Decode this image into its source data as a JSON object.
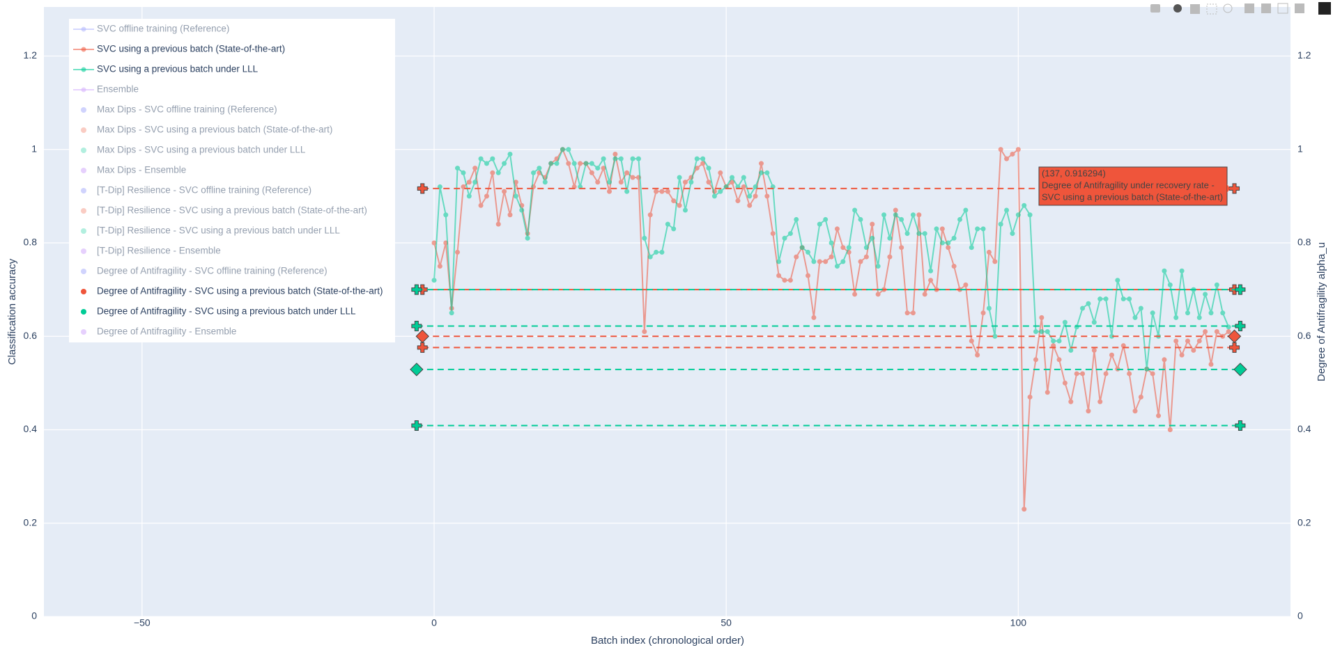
{
  "chart_data": {
    "type": "line",
    "x_label": "Batch index (chronological order)",
    "y_label": "Classification accuracy",
    "y2_label": "Degree of Antifragility alpha_u",
    "xlim": [
      -66.8,
      146.6
    ],
    "ylim": [
      0,
      1.305
    ],
    "y2lim": [
      0,
      1.305
    ],
    "xticks": [
      {
        "value": -50,
        "label": "−50"
      },
      0,
      50,
      100
    ],
    "yticks": [
      0,
      0.2,
      0.4,
      0.6,
      0.8,
      1,
      1.2
    ],
    "y2ticks": [
      0,
      0.2,
      0.4,
      0.6,
      0.8,
      1,
      1.2
    ],
    "grid": true,
    "x": [
      0,
      1,
      2,
      3,
      4,
      5,
      6,
      7,
      8,
      9,
      10,
      11,
      12,
      13,
      14,
      15,
      16,
      17,
      18,
      19,
      20,
      21,
      22,
      23,
      24,
      25,
      26,
      27,
      28,
      29,
      30,
      31,
      32,
      33,
      34,
      35,
      36,
      37,
      38,
      39,
      40,
      41,
      42,
      43,
      44,
      45,
      46,
      47,
      48,
      49,
      50,
      51,
      52,
      53,
      54,
      55,
      56,
      57,
      58,
      59,
      60,
      61,
      62,
      63,
      64,
      65,
      66,
      67,
      68,
      69,
      70,
      71,
      72,
      73,
      74,
      75,
      76,
      77,
      78,
      79,
      80,
      81,
      82,
      83,
      84,
      85,
      86,
      87,
      88,
      89,
      90,
      91,
      92,
      93,
      94,
      95,
      96,
      97,
      98,
      99,
      100,
      101,
      102,
      103,
      104,
      105,
      106,
      107,
      108,
      109,
      110,
      111,
      112,
      113,
      114,
      115,
      116,
      117,
      118,
      119,
      120,
      121,
      122,
      123,
      124,
      125,
      126,
      127,
      128,
      129,
      130,
      131,
      132,
      133,
      134,
      135,
      136
    ],
    "series": [
      {
        "name": "SVC offline training (Reference)",
        "color": "#636efa",
        "mode": "lines",
        "visible": false
      },
      {
        "name": "SVC using a previous batch (State-of-the-art)",
        "color": "#EF553B",
        "mode": "lines",
        "visible": true,
        "values": [
          0.8,
          0.75,
          0.8,
          0.66,
          0.78,
          0.92,
          0.93,
          0.96,
          0.88,
          0.9,
          0.95,
          0.84,
          0.91,
          0.86,
          0.93,
          0.88,
          0.82,
          0.92,
          0.95,
          0.94,
          0.97,
          0.98,
          1.0,
          0.97,
          0.92,
          0.97,
          0.97,
          0.95,
          0.93,
          0.96,
          0.91,
          0.99,
          0.93,
          0.95,
          0.94,
          0.94,
          0.61,
          0.86,
          0.91,
          0.91,
          0.91,
          0.89,
          0.88,
          0.93,
          0.94,
          0.96,
          0.97,
          0.93,
          0.91,
          0.95,
          0.92,
          0.93,
          0.89,
          0.92,
          0.88,
          0.9,
          0.97,
          0.9,
          0.82,
          0.73,
          0.72,
          0.72,
          0.77,
          0.79,
          0.73,
          0.64,
          0.76,
          0.76,
          0.77,
          0.83,
          0.79,
          0.78,
          0.69,
          0.76,
          0.77,
          0.84,
          0.69,
          0.7,
          0.77,
          0.87,
          0.79,
          0.65,
          0.65,
          0.86,
          0.69,
          0.72,
          0.7,
          0.83,
          0.79,
          0.75,
          0.7,
          0.71,
          0.59,
          0.56,
          0.65,
          0.78,
          0.76,
          1.0,
          0.98,
          0.99,
          1.0,
          0.23,
          0.47,
          0.55,
          0.64,
          0.48,
          0.58,
          0.55,
          0.5,
          0.46,
          0.52,
          0.52,
          0.44,
          0.57,
          0.46,
          0.52,
          0.56,
          0.53,
          0.58,
          0.52,
          0.44,
          0.47,
          0.53,
          0.52,
          0.43,
          0.55,
          0.4,
          0.59,
          0.56,
          0.59,
          0.57,
          0.59,
          0.61,
          0.54,
          0.61,
          0.6,
          0.61
        ]
      },
      {
        "name": "SVC using a previous batch under LLL",
        "color": "#00cc96",
        "mode": "lines",
        "visible": true,
        "values": [
          0.72,
          0.92,
          0.86,
          0.65,
          0.96,
          0.95,
          0.9,
          0.93,
          0.98,
          0.97,
          0.98,
          0.95,
          0.97,
          0.99,
          0.9,
          0.87,
          0.81,
          0.95,
          0.96,
          0.93,
          0.97,
          0.97,
          1.0,
          1.0,
          0.97,
          0.92,
          0.97,
          0.97,
          0.96,
          0.98,
          0.93,
          0.98,
          0.98,
          0.91,
          0.98,
          0.98,
          0.81,
          0.77,
          0.78,
          0.78,
          0.84,
          0.83,
          0.94,
          0.87,
          0.93,
          0.98,
          0.98,
          0.96,
          0.9,
          0.91,
          0.92,
          0.94,
          0.92,
          0.94,
          0.9,
          0.92,
          0.95,
          0.95,
          0.92,
          0.76,
          0.81,
          0.82,
          0.85,
          0.79,
          0.78,
          0.76,
          0.84,
          0.85,
          0.8,
          0.75,
          0.76,
          0.79,
          0.87,
          0.85,
          0.79,
          0.81,
          0.75,
          0.86,
          0.81,
          0.86,
          0.85,
          0.82,
          0.86,
          0.82,
          0.82,
          0.74,
          0.83,
          0.8,
          0.8,
          0.81,
          0.85,
          0.87,
          0.79,
          0.83,
          0.83,
          0.66,
          0.6,
          0.84,
          0.87,
          0.82,
          0.86,
          0.88,
          0.86,
          0.61,
          0.61,
          0.61,
          0.59,
          0.59,
          0.63,
          0.57,
          0.62,
          0.66,
          0.67,
          0.63,
          0.68,
          0.68,
          0.6,
          0.72,
          0.68,
          0.68,
          0.64,
          0.66,
          0.53,
          0.65,
          0.6,
          0.74,
          0.71,
          0.64,
          0.74,
          0.65,
          0.7,
          0.64,
          0.69,
          0.65,
          0.71,
          0.65,
          0.62
        ]
      },
      {
        "name": "Ensemble",
        "color": "#ab63fa",
        "mode": "lines",
        "visible": false
      },
      {
        "name": "Max Dips - SVC offline training (Reference)",
        "color": "#636efa",
        "mode": "markers",
        "visible": false
      },
      {
        "name": "Max Dips - SVC using a previous batch (State-of-the-art)",
        "color": "#EF553B",
        "mode": "markers",
        "visible": false
      },
      {
        "name": "Max Dips - SVC using a previous batch under LLL",
        "color": "#00cc96",
        "mode": "markers",
        "visible": false
      },
      {
        "name": "Max Dips - Ensemble",
        "color": "#ab63fa",
        "mode": "markers",
        "visible": false
      },
      {
        "name": "[T-Dip] Resilience - SVC offline training (Reference)",
        "color": "#636efa",
        "mode": "markers",
        "visible": false
      },
      {
        "name": "[T-Dip] Resilience - SVC using a previous batch (State-of-the-art)",
        "color": "#EF553B",
        "mode": "markers",
        "visible": false
      },
      {
        "name": "[T-Dip] Resilience - SVC using a previous batch under LLL",
        "color": "#00cc96",
        "mode": "markers",
        "visible": false
      },
      {
        "name": "[T-Dip] Resilience - Ensemble",
        "color": "#ab63fa",
        "mode": "markers",
        "visible": false
      },
      {
        "name": "Degree of Antifragility - SVC offline training (Reference)",
        "color": "#636efa",
        "mode": "markers",
        "visible": false
      },
      {
        "name": "Degree of Antifragility - SVC using a previous batch (State-of-the-art)",
        "color": "#EF553B",
        "mode": "markers",
        "visible": true,
        "axis": "y2",
        "level_x": [
          -2,
          137
        ],
        "levels": [
          {
            "value": 0.916294,
            "symbol": "cross"
          },
          {
            "value": 0.7,
            "symbol": "cross"
          },
          {
            "value": 0.6,
            "symbol": "diamond"
          },
          {
            "value": 0.576,
            "symbol": "cross"
          }
        ]
      },
      {
        "name": "Degree of Antifragility - SVC using a previous batch under LLL",
        "color": "#00cc96",
        "mode": "markers",
        "visible": true,
        "axis": "y2",
        "level_x": [
          -3,
          138
        ],
        "levels": [
          {
            "value": 0.7,
            "symbol": "cross"
          },
          {
            "value": 0.622,
            "symbol": "cross"
          },
          {
            "value": 0.529,
            "symbol": "diamond"
          },
          {
            "value": 0.409,
            "symbol": "cross"
          }
        ]
      },
      {
        "name": "Degree of Antifragility - Ensemble",
        "color": "#ab63fa",
        "mode": "markers",
        "visible": false
      }
    ],
    "hover": {
      "series": 13,
      "x": 137,
      "y": 0.916294,
      "coords_label": "(137, 0.916294)",
      "lines": [
        "Degree of Antifragility under recovery rate -",
        "SVC using a previous batch (State-of-the-art)"
      ]
    }
  }
}
